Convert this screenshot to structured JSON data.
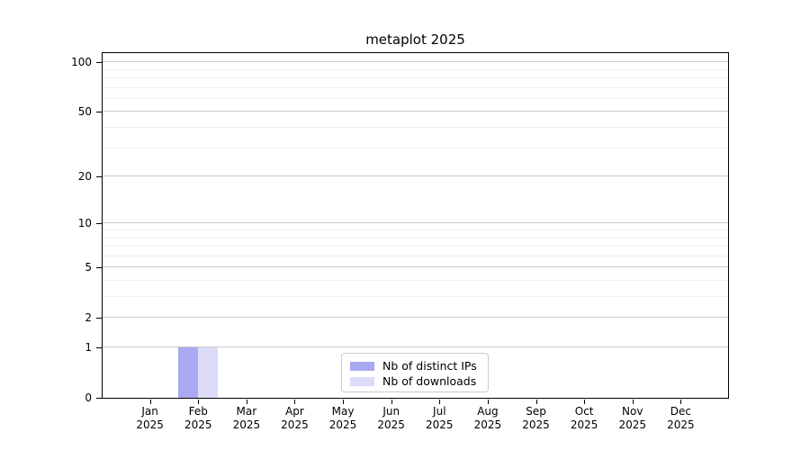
{
  "chart_data": {
    "type": "bar",
    "title": "metaplot 2025",
    "x_axis": {
      "months": [
        "Jan",
        "Feb",
        "Mar",
        "Apr",
        "May",
        "Jun",
        "Jul",
        "Aug",
        "Sep",
        "Oct",
        "Nov",
        "Dec"
      ],
      "year": "2025"
    },
    "y_axis": {
      "scale": "log1p",
      "major_ticks": [
        0,
        1,
        2,
        5,
        10,
        20,
        50,
        100
      ],
      "minor_ticks": [
        3,
        4,
        6,
        7,
        8,
        9,
        30,
        40,
        60,
        70,
        80,
        90
      ],
      "ylim": [
        0,
        115
      ]
    },
    "series": [
      {
        "name": "Nb of distinct IPs",
        "color": "#a9a9f2",
        "values": [
          0,
          1,
          0,
          0,
          0,
          0,
          0,
          0,
          0,
          0,
          0,
          0
        ]
      },
      {
        "name": "Nb of downloads",
        "color": "#dcdcf9",
        "values": [
          0,
          1,
          0,
          0,
          0,
          0,
          0,
          0,
          0,
          0,
          0,
          0
        ]
      }
    ],
    "legend": {
      "position": "lower center",
      "items": [
        "Nb of distinct IPs",
        "Nb of downloads"
      ]
    },
    "grid": {
      "axis": "y",
      "which": "both",
      "major_color": "#c9c9c9",
      "minor_color": "#efefef"
    }
  },
  "colors": {
    "background": "#ffffff",
    "spine": "#000000",
    "text": "#000000"
  }
}
